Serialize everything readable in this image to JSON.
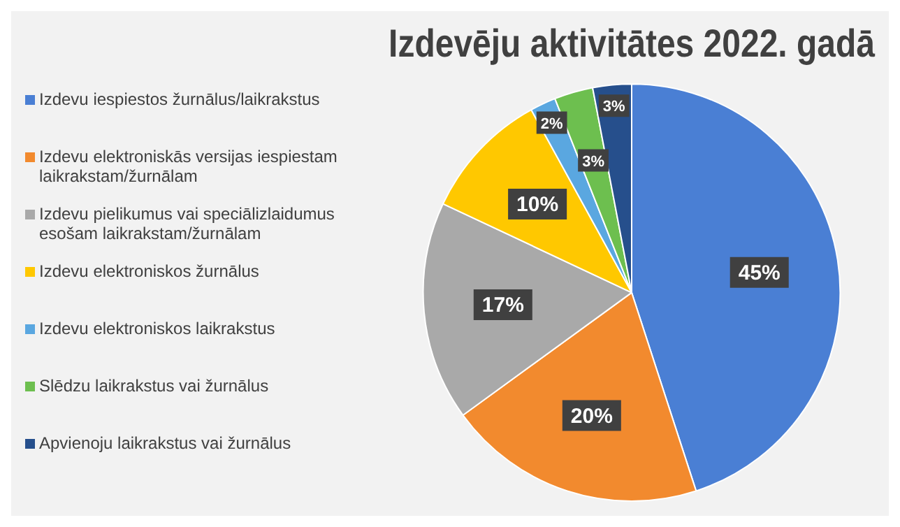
{
  "chart_data": {
    "type": "pie",
    "title": "Izdevēju aktivitātes 2022. gadā",
    "categories": [
      "Izdevu iespiestos žurnālus/laikrakstus",
      "Izdevu elektroniskās versijas iespiestam laikrakstam/žurnālam",
      "Izdevu pielikumus vai speciālizlaidumus esošam laikrakstam/žurnālam",
      "Izdevu elektroniskos žurnālus",
      "Izdevu elektroniskos laikrakstus",
      "Slēdzu laikrakstus vai žurnālus",
      "Apvienoju laikrakstus vai žurnālus"
    ],
    "values": [
      45,
      20,
      17,
      10,
      2,
      3,
      3
    ],
    "colors": [
      "#4a7fd4",
      "#f28a2e",
      "#a9a9a9",
      "#ffc800",
      "#5aa7e0",
      "#6dbf4f",
      "#264f8c"
    ],
    "value_labels": [
      "45%",
      "20%",
      "17%",
      "10%",
      "2%",
      "3%",
      "3%"
    ],
    "legend": "left"
  }
}
